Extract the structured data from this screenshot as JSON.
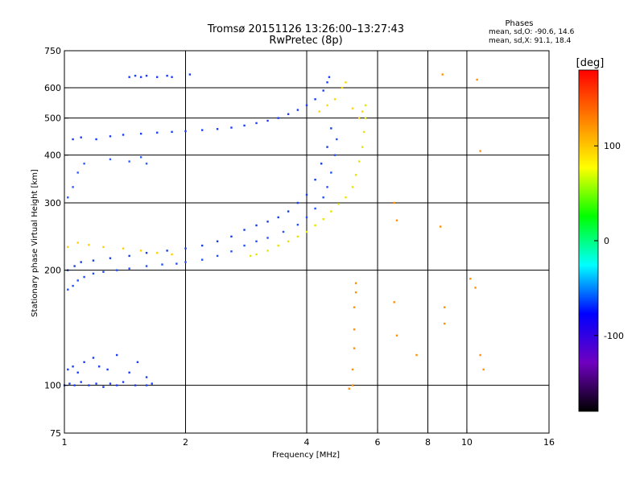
{
  "chart_data": {
    "type": "scatter",
    "title": "Tromsø 20151126 13:26:00–13:27:43",
    "subtitle": "RwPretec (8p)",
    "xlabel": "Frequency [MHz]",
    "ylabel": "Stationary phase Virtual Height [km]",
    "x_scale": "log2",
    "y_scale": "log",
    "xlim": [
      1,
      16
    ],
    "ylim": [
      75,
      750
    ],
    "x_ticks": [
      1,
      2,
      4,
      6,
      8,
      10,
      16
    ],
    "y_ticks": [
      75,
      100,
      200,
      300,
      400,
      500,
      600,
      750
    ],
    "grid_x": [
      2,
      4,
      6,
      8,
      10
    ],
    "grid_y": [
      100,
      200,
      300,
      400,
      500,
      600
    ],
    "legend": {
      "heading": "Phases",
      "lines": [
        "mean, sd,O: -90.6, 14.6",
        "mean, sd,X:  91.1, 18.4"
      ]
    },
    "colorbar": {
      "label": "[deg]",
      "min": -180,
      "max": 180,
      "ticks": [
        100,
        0,
        -100
      ],
      "colors": [
        "#ff0000",
        "#ff8000",
        "#ffff00",
        "#00ff00",
        "#00ffff",
        "#0000ff",
        "#7000c0",
        "#000000"
      ]
    },
    "series": [
      {
        "name": "",
        "points": [
          [
            1.0,
            100
          ],
          [
            1.03,
            101
          ],
          [
            1.06,
            100
          ],
          [
            1.1,
            102
          ],
          [
            1.15,
            100
          ],
          [
            1.2,
            101
          ],
          [
            1.25,
            99
          ],
          [
            1.3,
            101
          ],
          [
            1.35,
            100
          ],
          [
            1.4,
            102
          ],
          [
            1.5,
            100
          ],
          [
            1.6,
            100
          ],
          [
            1.65,
            101
          ],
          [
            1.02,
            110
          ],
          [
            1.05,
            112
          ],
          [
            1.08,
            108
          ],
          [
            1.12,
            115
          ],
          [
            1.18,
            118
          ],
          [
            1.22,
            112
          ],
          [
            1.28,
            110
          ],
          [
            1.35,
            120
          ],
          [
            1.45,
            108
          ],
          [
            1.52,
            115
          ],
          [
            1.6,
            105
          ]
        ]
      },
      {
        "name": "",
        "points": [
          [
            1.02,
            178
          ],
          [
            1.05,
            182
          ],
          [
            1.08,
            188
          ],
          [
            1.12,
            192
          ],
          [
            1.18,
            196
          ],
          [
            1.25,
            198
          ],
          [
            1.35,
            200
          ],
          [
            1.45,
            202
          ],
          [
            1.6,
            205
          ],
          [
            1.75,
            207
          ],
          [
            1.9,
            208
          ],
          [
            2.0,
            210
          ],
          [
            2.2,
            213
          ],
          [
            2.4,
            218
          ],
          [
            2.6,
            224
          ],
          [
            2.8,
            232
          ],
          [
            3.0,
            238
          ],
          [
            3.2,
            243
          ],
          [
            3.5,
            252
          ],
          [
            3.8,
            263
          ],
          [
            4.0,
            275
          ],
          [
            4.2,
            290
          ],
          [
            4.4,
            310
          ],
          [
            4.5,
            330
          ],
          [
            4.6,
            360
          ],
          [
            4.7,
            400
          ],
          [
            4.75,
            440
          ]
        ]
      },
      {
        "name": "",
        "points": [
          [
            1.02,
            200
          ],
          [
            1.06,
            205
          ],
          [
            1.1,
            210
          ],
          [
            1.18,
            212
          ],
          [
            1.3,
            215
          ],
          [
            1.45,
            218
          ],
          [
            1.6,
            222
          ],
          [
            1.8,
            225
          ],
          [
            2.0,
            228
          ],
          [
            2.2,
            232
          ],
          [
            2.4,
            238
          ],
          [
            2.6,
            245
          ],
          [
            2.8,
            255
          ],
          [
            3.0,
            262
          ],
          [
            3.2,
            268
          ],
          [
            3.4,
            275
          ],
          [
            3.6,
            285
          ],
          [
            3.8,
            300
          ],
          [
            4.0,
            315
          ],
          [
            4.2,
            345
          ],
          [
            4.35,
            380
          ],
          [
            4.5,
            420
          ],
          [
            4.6,
            470
          ]
        ]
      },
      {
        "name": "",
        "points": [
          [
            1.02,
            230
          ],
          [
            1.08,
            236
          ],
          [
            1.15,
            233
          ],
          [
            1.25,
            230
          ],
          [
            1.4,
            228
          ],
          [
            1.55,
            225
          ],
          [
            1.7,
            222
          ],
          [
            1.85,
            220
          ]
        ]
      },
      {
        "name": "",
        "points": [
          [
            2.9,
            218
          ],
          [
            3.0,
            220
          ],
          [
            3.2,
            225
          ],
          [
            3.4,
            232
          ],
          [
            3.6,
            238
          ],
          [
            3.8,
            245
          ],
          [
            4.0,
            252
          ],
          [
            4.2,
            262
          ],
          [
            4.4,
            272
          ],
          [
            4.6,
            285
          ],
          [
            4.8,
            298
          ],
          [
            5.0,
            310
          ],
          [
            5.2,
            330
          ],
          [
            5.3,
            355
          ],
          [
            5.4,
            385
          ],
          [
            5.5,
            420
          ],
          [
            5.55,
            460
          ],
          [
            5.6,
            500
          ],
          [
            5.6,
            540
          ]
        ]
      },
      {
        "name": "",
        "points": [
          [
            1.05,
            440
          ],
          [
            1.1,
            445
          ],
          [
            1.2,
            440
          ],
          [
            1.3,
            448
          ],
          [
            1.4,
            452
          ],
          [
            1.55,
            455
          ],
          [
            1.7,
            458
          ],
          [
            1.85,
            460
          ],
          [
            2.0,
            462
          ],
          [
            2.2,
            465
          ],
          [
            2.4,
            468
          ],
          [
            2.6,
            472
          ],
          [
            2.8,
            478
          ],
          [
            3.0,
            485
          ],
          [
            3.2,
            492
          ],
          [
            3.4,
            500
          ],
          [
            3.6,
            512
          ],
          [
            3.8,
            525
          ],
          [
            4.0,
            540
          ],
          [
            4.2,
            560
          ],
          [
            4.4,
            590
          ],
          [
            4.5,
            620
          ],
          [
            4.55,
            640
          ]
        ]
      },
      {
        "name": "",
        "points": [
          [
            1.02,
            310
          ],
          [
            1.05,
            330
          ],
          [
            1.08,
            360
          ],
          [
            1.12,
            380
          ],
          [
            1.3,
            390
          ],
          [
            1.45,
            385
          ],
          [
            1.55,
            395
          ],
          [
            1.6,
            380
          ]
        ]
      },
      {
        "name": "",
        "points": [
          [
            1.45,
            640
          ],
          [
            1.5,
            645
          ],
          [
            1.55,
            640
          ],
          [
            1.6,
            645
          ],
          [
            1.7,
            640
          ],
          [
            1.8,
            645
          ],
          [
            1.85,
            640
          ],
          [
            2.05,
            650
          ]
        ]
      },
      {
        "name": "",
        "points": [
          [
            4.3,
            520
          ],
          [
            4.5,
            540
          ],
          [
            4.7,
            560
          ],
          [
            4.9,
            600
          ],
          [
            5.0,
            620
          ],
          [
            5.2,
            530
          ],
          [
            5.4,
            500
          ],
          [
            5.5,
            520
          ]
        ]
      },
      {
        "name": "",
        "points": [
          [
            5.1,
            98
          ],
          [
            5.2,
            100
          ],
          [
            5.2,
            110
          ],
          [
            5.25,
            125
          ],
          [
            5.25,
            140
          ],
          [
            5.25,
            160
          ],
          [
            5.3,
            175
          ],
          [
            5.3,
            185
          ],
          [
            6.6,
            300
          ],
          [
            6.7,
            270
          ],
          [
            6.6,
            165
          ],
          [
            6.7,
            135
          ],
          [
            7.5,
            120
          ],
          [
            8.8,
            145
          ],
          [
            8.8,
            160
          ],
          [
            8.6,
            260
          ],
          [
            10.2,
            190
          ],
          [
            10.5,
            180
          ],
          [
            10.8,
            120
          ],
          [
            11.0,
            110
          ],
          [
            10.8,
            410
          ],
          [
            10.6,
            630
          ],
          [
            8.7,
            650
          ]
        ]
      }
    ]
  }
}
